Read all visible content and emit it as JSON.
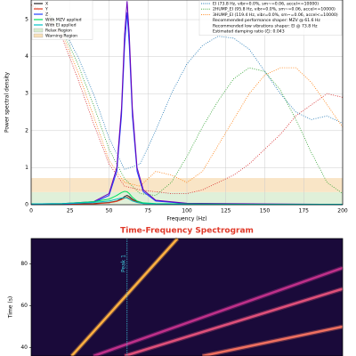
{
  "chart_data": [
    {
      "type": "line",
      "xlabel": "Frequency (Hz)",
      "ylabel": "Power spectral density",
      "xlim": [
        0,
        200
      ],
      "ylim": [
        0,
        5.53
      ],
      "xticks": [
        0,
        25,
        50,
        75,
        100,
        125,
        150,
        175,
        200
      ],
      "yticks": [
        0,
        1,
        2,
        3,
        4,
        5
      ],
      "grid": true,
      "x": [
        0,
        20,
        40,
        50,
        55,
        58,
        60,
        61.6,
        63,
        65,
        68,
        72,
        80,
        100,
        150,
        200
      ],
      "series": [
        {
          "name": "X",
          "color": "#222222",
          "values": [
            0.01,
            0.01,
            0.03,
            0.06,
            0.1,
            0.16,
            0.22,
            0.25,
            0.22,
            0.15,
            0.08,
            0.04,
            0.02,
            0.01,
            0.01,
            0.01
          ]
        },
        {
          "name": "Y",
          "color": "#e03a1e",
          "values": [
            0.01,
            0.01,
            0.02,
            0.05,
            0.09,
            0.14,
            0.18,
            0.2,
            0.18,
            0.12,
            0.07,
            0.03,
            0.02,
            0.01,
            0.01,
            0.01
          ]
        },
        {
          "name": "Z",
          "color": "#1f3fff",
          "values": [
            0.01,
            0.02,
            0.06,
            0.25,
            0.9,
            2.4,
            4.3,
            5.2,
            4.3,
            2.4,
            0.9,
            0.35,
            0.1,
            0.03,
            0.01,
            0.01
          ]
        },
        {
          "color": "#6a00b8",
          "values": [
            0.02,
            0.03,
            0.08,
            0.3,
            1.0,
            2.6,
            4.6,
            5.5,
            4.6,
            2.6,
            1.0,
            0.4,
            0.12,
            0.04,
            0.02,
            0.01
          ]
        },
        {
          "name": "With MZV applied",
          "color": "#00e060",
          "values": [
            0.02,
            0.03,
            0.08,
            0.15,
            0.25,
            0.33,
            0.36,
            0.35,
            0.3,
            0.2,
            0.1,
            0.05,
            0.03,
            0.02,
            0.01,
            0.01
          ]
        },
        {
          "name": "With EI applied",
          "color": "#00c0c8",
          "values": [
            0.02,
            0.03,
            0.06,
            0.1,
            0.15,
            0.18,
            0.19,
            0.18,
            0.15,
            0.1,
            0.06,
            0.03,
            0.02,
            0.01,
            0.01,
            0.01
          ]
        }
      ],
      "shaper_x": [
        0,
        10,
        20,
        30,
        40,
        50,
        60,
        70,
        80,
        90,
        100,
        110,
        120,
        130,
        140,
        150,
        160,
        170,
        180,
        190,
        200
      ],
      "shapers": [
        {
          "name": "EI (73.8 Hz, vibr=0.0%, sm~=0.06, accel<=10000)",
          "color": "#1f77b4",
          "values": [
            5.4,
            5.2,
            4.8,
            4.0,
            3.0,
            1.8,
            0.95,
            1.1,
            2.0,
            3.0,
            3.8,
            4.3,
            4.55,
            4.5,
            4.2,
            3.6,
            3.0,
            2.5,
            2.3,
            2.4,
            2.2
          ]
        },
        {
          "name": "2HUMP_EI (95.8 Hz, vibr=0.0%, sm~=0.06, accel<=10000)",
          "color": "#2ca02c",
          "values": [
            5.4,
            5.2,
            4.7,
            3.8,
            2.7,
            1.5,
            0.7,
            0.3,
            0.25,
            0.6,
            1.3,
            2.1,
            2.8,
            3.4,
            3.7,
            3.6,
            3.1,
            2.3,
            1.4,
            0.6,
            0.3
          ]
        },
        {
          "name": "3HUMP_EI (119.4 Hz, vibr=0.0%, sm~=0.06, accel<=10000)",
          "color": "#ff7f0e",
          "values": [
            5.4,
            5.2,
            4.6,
            3.6,
            2.4,
            1.2,
            0.6,
            0.5,
            0.9,
            0.8,
            0.6,
            0.9,
            1.6,
            2.3,
            3.0,
            3.5,
            3.7,
            3.7,
            3.3,
            2.7,
            2.1
          ]
        },
        {
          "color": "#d62728",
          "values": [
            5.4,
            5.1,
            4.5,
            3.4,
            2.2,
            1.1,
            0.5,
            0.4,
            0.35,
            0.3,
            0.3,
            0.4,
            0.6,
            0.8,
            1.1,
            1.5,
            1.9,
            2.4,
            2.7,
            3.0,
            2.9
          ]
        }
      ],
      "notes": [
        "Recommended performance shaper: MZV @ 61.6 Hz",
        "Recommended low vibrations shaper: EI @ 73.8 Hz",
        "Estimated damping ratio (ζ): 0.043"
      ],
      "regions": [
        {
          "name": "Relax Region",
          "color": "#d8ecd0",
          "ylim": [
            0,
            0.34
          ]
        },
        {
          "name": "Warning Region",
          "color": "#f7dfb8",
          "ylim": [
            0.34,
            0.72
          ]
        }
      ]
    },
    {
      "type": "spectrogram",
      "title": "Time-Frequency Spectrogram",
      "ylabel": "Time (s)",
      "xlim": [
        0,
        200
      ],
      "ylim": [
        36,
        92
      ],
      "yticks": [
        40,
        60,
        80
      ],
      "peak": {
        "x": 61.6,
        "label": "Peak 1"
      },
      "ridges": [
        {
          "x": [
            26,
            94
          ],
          "y": [
            36,
            92
          ],
          "color": "#ffb040"
        },
        {
          "x": [
            40,
            200
          ],
          "y": [
            36,
            78
          ],
          "color": "#c0308a"
        },
        {
          "x": [
            60,
            200
          ],
          "y": [
            36,
            68
          ],
          "color": "#e0507a"
        },
        {
          "x": [
            110,
            200
          ],
          "y": [
            36,
            50
          ],
          "color": "#f07060"
        }
      ]
    }
  ]
}
